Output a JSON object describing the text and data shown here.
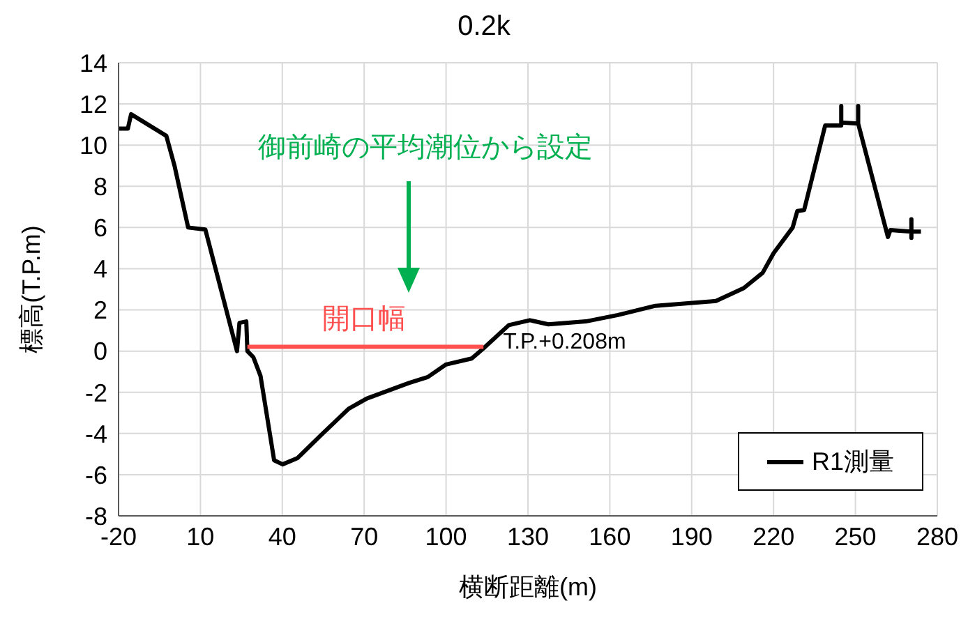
{
  "chart_data": {
    "type": "line",
    "title": "0.2k",
    "xlabel": "横断距離(m)",
    "ylabel": "標高(T.P.m)",
    "xlim": [
      -20,
      280
    ],
    "xticks": [
      -20,
      10,
      40,
      70,
      100,
      130,
      160,
      190,
      220,
      250,
      280
    ],
    "ylim": [
      -8,
      14
    ],
    "yticks": [
      -8,
      -6,
      -4,
      -2,
      0,
      2,
      4,
      6,
      8,
      10,
      12,
      14
    ],
    "grid": true,
    "legend": "bottom right",
    "marker": "none",
    "line_style": "solid",
    "series": [
      {
        "name": "R1測量",
        "color": "#000000",
        "x": [
          -20,
          -16.6,
          -15.4,
          -2.5,
          0.5,
          5.5,
          11.8,
          23.4,
          24.3,
          26.8,
          27.2,
          29.4,
          32,
          35.3,
          37,
          40.1,
          45.5,
          54,
          64.3,
          71,
          86.4,
          93.3,
          100,
          109.4,
          113.7,
          123,
          130.7,
          137.5,
          151.2,
          163,
          176.7,
          198.9,
          209.1,
          216,
          220,
          227,
          228.7,
          231.2,
          238.9,
          243.1,
          244.8,
          244.8,
          244.8,
          251,
          251,
          251,
          261.9,
          262.8,
          270.5,
          270.5,
          270.5,
          270.5,
          274
        ],
        "values": [
          10.8,
          10.8,
          11.5,
          10.45,
          9,
          6,
          5.9,
          0,
          1.37,
          1.44,
          0,
          -0.3,
          -1.2,
          -3.9,
          -5.3,
          -5.5,
          -5.2,
          -4.1,
          -2.8,
          -2.3,
          -1.55,
          -1.26,
          -0.65,
          -0.36,
          0.13,
          1.26,
          1.5,
          1.3,
          1.44,
          1.75,
          2.2,
          2.43,
          3.06,
          3.8,
          4.75,
          6,
          6.8,
          6.85,
          10.95,
          10.95,
          10.95,
          11.9,
          11.1,
          11.05,
          11.9,
          11.05,
          5.54,
          5.88,
          5.8,
          6.4,
          5.5,
          5.8,
          5.8
        ]
      },
      {
        "color": "#ff5050",
        "x": [
          27.2,
          113.7
        ],
        "values": [
          0.208,
          0.208
        ]
      }
    ],
    "annotations": [
      "御前崎の平均潮位から設定",
      {
        "text": "開口幅",
        "x": 70,
        "y": 0.208
      },
      {
        "text": "T.P.+0.208m",
        "x": 113.7,
        "y": 0.208
      }
    ]
  }
}
